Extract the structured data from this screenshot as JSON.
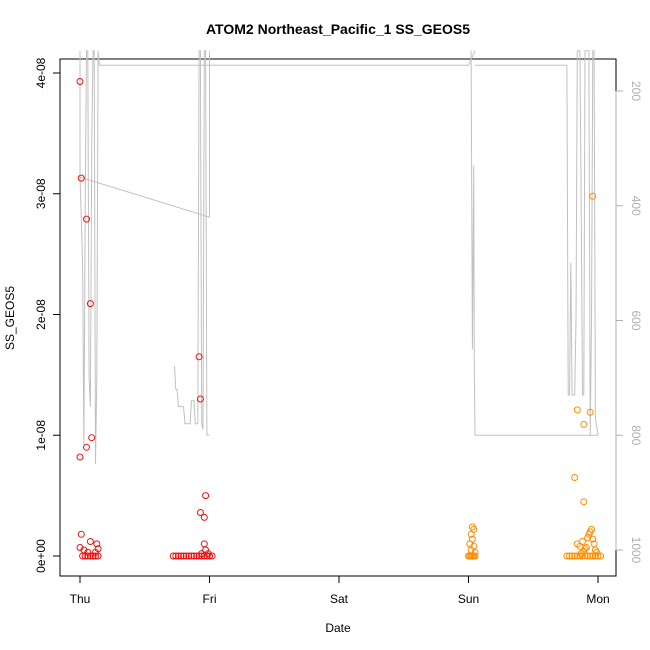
{
  "chart_data": {
    "type": "scatter",
    "title": "ATOM2 Northeast_Pacific_1 SS_GEOS5",
    "xlabel": "Date",
    "ylabel": "SS_GEOS5",
    "xlim": [
      0,
      4.15
    ],
    "ylim": [
      -1.5e-09,
      4.1e-08
    ],
    "x_ticks": [
      {
        "value": 0,
        "label": "Thu"
      },
      {
        "value": 1,
        "label": "Fri"
      },
      {
        "value": 2,
        "label": "Sat"
      },
      {
        "value": 3,
        "label": "Sun"
      },
      {
        "value": 4,
        "label": "Mon"
      }
    ],
    "y_ticks": [
      {
        "value": 0,
        "label": "0e+00"
      },
      {
        "value": 1e-08,
        "label": "1e-08"
      },
      {
        "value": 2e-08,
        "label": "2e-08"
      },
      {
        "value": 3e-08,
        "label": "3e-08"
      },
      {
        "value": 4e-08,
        "label": "4e-08"
      }
    ],
    "right_axis": {
      "range": [
        1050,
        125
      ],
      "ticks": [
        {
          "value": 200,
          "label": "200"
        },
        {
          "value": 400,
          "label": "400"
        },
        {
          "value": 600,
          "label": "600"
        },
        {
          "value": 800,
          "label": "800"
        },
        {
          "value": 1000,
          "label": "1000"
        }
      ],
      "color": "#b0b0b0"
    },
    "colors": {
      "series_1": "#ee1111",
      "series_2": "#ff8c00",
      "altitude_line": "#c0c0c0"
    },
    "series": [
      {
        "color": "#ee1111",
        "points": [
          [
            0.0,
            3.93e-08
          ],
          [
            0.01,
            3.13e-08
          ],
          [
            0.05,
            2.79e-08
          ],
          [
            0.08,
            2.09e-08
          ],
          [
            0.0,
            8.2e-09
          ],
          [
            0.05,
            9e-09
          ],
          [
            0.09,
            9.8e-09
          ],
          [
            0.01,
            1.8e-09
          ],
          [
            0.0,
            7e-10
          ],
          [
            0.03,
            5e-10
          ],
          [
            0.06,
            3e-10
          ],
          [
            0.08,
            1.2e-09
          ],
          [
            0.13,
            1e-09
          ],
          [
            0.14,
            6e-10
          ],
          [
            0.12,
            3e-10
          ],
          [
            0.02,
            0.0
          ],
          [
            0.04,
            0.0
          ],
          [
            0.06,
            0.0
          ],
          [
            0.08,
            0.0
          ],
          [
            0.1,
            0.0
          ],
          [
            0.12,
            0.0
          ],
          [
            0.14,
            0.0
          ],
          [
            0.72,
            0.0
          ],
          [
            0.74,
            0.0
          ],
          [
            0.76,
            0.0
          ],
          [
            0.78,
            0.0
          ],
          [
            0.8,
            0.0
          ],
          [
            0.82,
            0.0
          ],
          [
            0.84,
            0.0
          ],
          [
            0.86,
            0.0
          ],
          [
            0.88,
            0.0
          ],
          [
            0.9,
            0.0
          ],
          [
            0.92,
            0.0
          ],
          [
            0.94,
            0.0
          ],
          [
            0.96,
            0.0
          ],
          [
            0.98,
            0.0
          ],
          [
            1.0,
            0.0
          ],
          [
            1.02,
            0.0
          ],
          [
            0.92,
            1.65e-08
          ],
          [
            0.93,
            1.3e-08
          ],
          [
            0.97,
            5e-09
          ],
          [
            0.93,
            3.6e-09
          ],
          [
            0.96,
            3.2e-09
          ],
          [
            0.96,
            1e-09
          ],
          [
            0.97,
            5e-10
          ],
          [
            0.94,
            2e-10
          ],
          [
            0.99,
            2e-10
          ]
        ]
      },
      {
        "color": "#ff8c00",
        "points": [
          [
            3.0,
            0.0
          ],
          [
            3.01,
            0.0
          ],
          [
            3.02,
            0.0
          ],
          [
            3.03,
            0.0
          ],
          [
            3.04,
            0.0
          ],
          [
            3.05,
            0.0
          ],
          [
            3.03,
            2.4e-09
          ],
          [
            3.04,
            2.2e-09
          ],
          [
            3.02,
            1.8e-09
          ],
          [
            3.03,
            1.4e-09
          ],
          [
            3.01,
            1e-09
          ],
          [
            3.04,
            8e-10
          ],
          [
            3.02,
            5e-10
          ],
          [
            3.05,
            3e-10
          ],
          [
            3.76,
            0.0
          ],
          [
            3.78,
            0.0
          ],
          [
            3.8,
            0.0
          ],
          [
            3.82,
            0.0
          ],
          [
            3.84,
            0.0
          ],
          [
            3.86,
            0.0
          ],
          [
            3.88,
            0.0
          ],
          [
            3.9,
            0.0
          ],
          [
            3.92,
            0.0
          ],
          [
            3.94,
            0.0
          ],
          [
            3.96,
            0.0
          ],
          [
            3.98,
            0.0
          ],
          [
            4.0,
            0.0
          ],
          [
            4.02,
            0.0
          ],
          [
            3.84,
            1e-09
          ],
          [
            3.86,
            8e-10
          ],
          [
            3.88,
            1.2e-09
          ],
          [
            3.9,
            6e-10
          ],
          [
            3.92,
            1.5e-09
          ],
          [
            3.93,
            1.8e-09
          ],
          [
            3.94,
            2e-09
          ],
          [
            3.95,
            2.2e-09
          ],
          [
            3.96,
            1.4e-09
          ],
          [
            3.97,
            1e-09
          ],
          [
            3.98,
            5e-10
          ],
          [
            3.99,
            3e-10
          ],
          [
            3.91,
            7e-10
          ],
          [
            3.89,
            4e-10
          ],
          [
            3.87,
            2e-10
          ],
          [
            3.82,
            6.5e-09
          ],
          [
            3.89,
            4.5e-09
          ],
          [
            3.84,
            1.21e-08
          ],
          [
            3.89,
            1.09e-08
          ],
          [
            3.94,
            1.19e-08
          ],
          [
            3.96,
            2.98e-08
          ]
        ]
      }
    ],
    "altitude_line": [
      [
        0.0,
        130
      ],
      [
        0.0,
        300
      ],
      [
        0.0,
        350
      ],
      [
        0.02,
        500
      ],
      [
        0.03,
        820
      ],
      [
        0.04,
        400
      ],
      [
        0.05,
        130
      ],
      [
        0.06,
        130
      ],
      [
        0.07,
        700
      ],
      [
        0.08,
        750
      ],
      [
        0.09,
        300
      ],
      [
        0.1,
        130
      ],
      [
        0.11,
        130
      ],
      [
        0.12,
        850
      ],
      [
        0.13,
        700
      ],
      [
        0.14,
        130
      ],
      [
        0.15,
        155
      ],
      [
        2.25,
        155
      ],
      [
        3.0,
        155
      ],
      [
        3.05,
        130
      ]
    ],
    "altitude_line_b": [
      [
        0.0,
        350
      ],
      [
        1.0,
        420
      ],
      [
        1.0,
        130
      ]
    ],
    "altitude_line_c": [
      [
        0.73,
        680
      ],
      [
        0.74,
        720
      ],
      [
        0.75,
        720
      ],
      [
        0.76,
        750
      ],
      [
        0.8,
        750
      ],
      [
        0.81,
        780
      ],
      [
        0.85,
        780
      ],
      [
        0.86,
        740
      ],
      [
        0.88,
        740
      ],
      [
        0.89,
        780
      ],
      [
        0.91,
        780
      ],
      [
        0.92,
        130
      ],
      [
        0.93,
        130
      ],
      [
        0.94,
        780
      ],
      [
        0.95,
        790
      ],
      [
        0.96,
        130
      ],
      [
        0.97,
        130
      ],
      [
        0.98,
        800
      ],
      [
        1.0,
        800
      ]
    ],
    "altitude_line_d": [
      [
        3.02,
        130
      ],
      [
        3.03,
        650
      ],
      [
        3.04,
        330
      ],
      [
        3.045,
        680
      ],
      [
        3.05,
        800
      ],
      [
        4.0,
        800
      ],
      [
        3.98,
        770
      ],
      [
        3.97,
        130
      ],
      [
        3.96,
        130
      ],
      [
        3.95,
        600
      ],
      [
        3.94,
        800
      ],
      [
        3.93,
        130
      ],
      [
        3.9,
        130
      ],
      [
        3.89,
        730
      ],
      [
        3.88,
        730
      ],
      [
        3.87,
        400
      ],
      [
        3.86,
        130
      ],
      [
        3.85,
        130
      ],
      [
        3.84,
        130
      ],
      [
        3.83,
        600
      ],
      [
        3.82,
        730
      ],
      [
        3.8,
        730
      ],
      [
        3.79,
        500
      ],
      [
        3.78,
        730
      ],
      [
        3.77,
        730
      ],
      [
        3.76,
        155
      ],
      [
        3.05,
        155
      ]
    ]
  }
}
